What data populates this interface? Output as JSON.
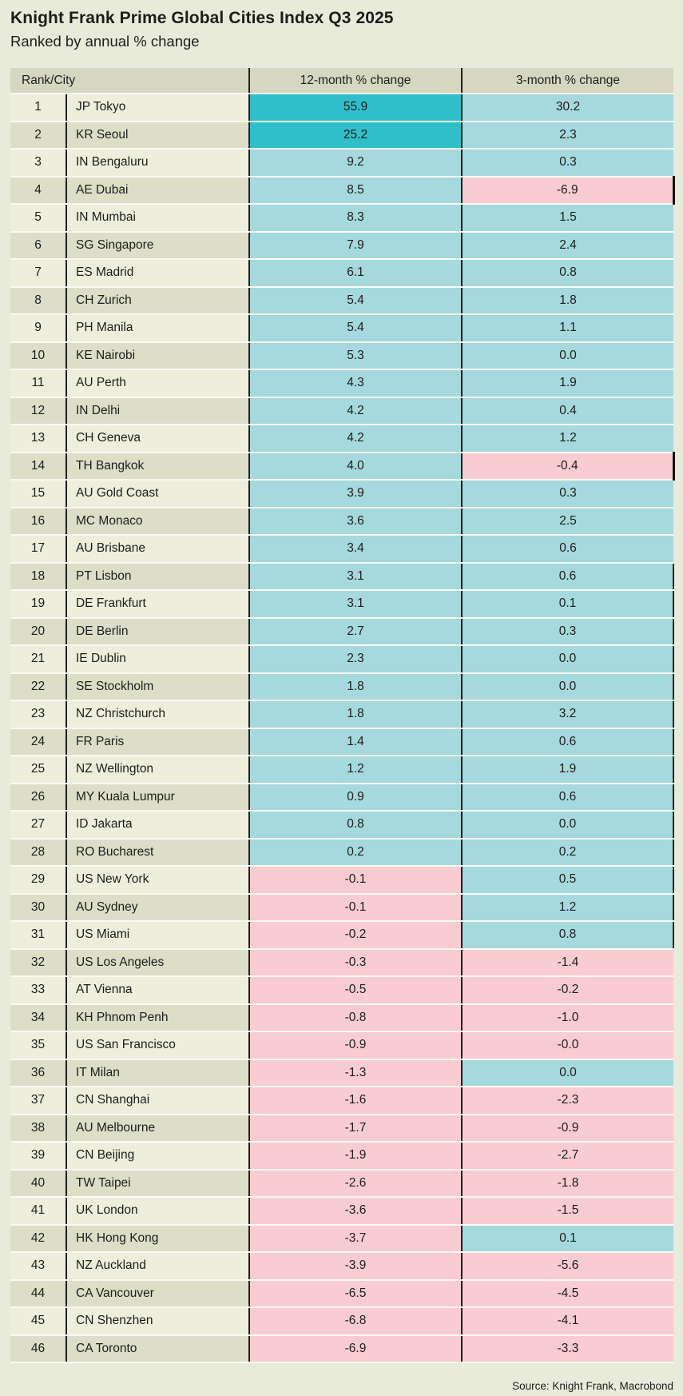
{
  "header": {
    "title": "Knight Frank Prime Global Cities Index Q3 2025",
    "subtitle": "Ranked by annual % change"
  },
  "table": {
    "columns": [
      "Rank/City",
      "12-month % change",
      "3-month % change"
    ]
  },
  "chart_data": {
    "type": "table",
    "title": "Knight Frank Prime Global Cities Index Q3 2025",
    "subtitle": "Ranked by annual % change",
    "columns": [
      "Rank",
      "City",
      "12-month % change",
      "3-month % change"
    ],
    "rows": [
      [
        "1",
        "JP Tokyo",
        "55.9",
        "30.2"
      ],
      [
        "2",
        "KR Seoul",
        "25.2",
        "2.3"
      ],
      [
        "3",
        "IN Bengaluru",
        "9.2",
        "0.3"
      ],
      [
        "4",
        "AE Dubai",
        "8.5",
        "-6.9"
      ],
      [
        "5",
        "IN Mumbai",
        "8.3",
        "1.5"
      ],
      [
        "6",
        "SG Singapore",
        "7.9",
        "2.4"
      ],
      [
        "7",
        "ES Madrid",
        "6.1",
        "0.8"
      ],
      [
        "8",
        "CH Zurich",
        "5.4",
        "1.8"
      ],
      [
        "9",
        "PH Manila",
        "5.4",
        "1.1"
      ],
      [
        "10",
        "KE Nairobi",
        "5.3",
        "0.0"
      ],
      [
        "11",
        "AU Perth",
        "4.3",
        "1.9"
      ],
      [
        "12",
        "IN Delhi",
        "4.2",
        "0.4"
      ],
      [
        "13",
        "CH Geneva",
        "4.2",
        "1.2"
      ],
      [
        "14",
        "TH Bangkok",
        "4.0",
        "-0.4"
      ],
      [
        "15",
        "AU Gold Coast",
        "3.9",
        "0.3"
      ],
      [
        "16",
        "MC Monaco",
        "3.6",
        "2.5"
      ],
      [
        "17",
        "AU Brisbane",
        "3.4",
        "0.6"
      ],
      [
        "18",
        "PT Lisbon",
        "3.1",
        "0.6"
      ],
      [
        "19",
        "DE Frankfurt",
        "3.1",
        "0.1"
      ],
      [
        "20",
        "DE Berlin",
        "2.7",
        "0.3"
      ],
      [
        "21",
        "IE Dublin",
        "2.3",
        "0.0"
      ],
      [
        "22",
        "SE Stockholm",
        "1.8",
        "0.0"
      ],
      [
        "23",
        "NZ Christchurch",
        "1.8",
        "3.2"
      ],
      [
        "24",
        "FR Paris",
        "1.4",
        "0.6"
      ],
      [
        "25",
        "NZ Wellington",
        "1.2",
        "1.9"
      ],
      [
        "26",
        "MY Kuala Lumpur",
        "0.9",
        "0.6"
      ],
      [
        "27",
        "ID Jakarta",
        "0.8",
        "0.0"
      ],
      [
        "28",
        "RO Bucharest",
        "0.2",
        "0.2"
      ],
      [
        "29",
        "US New York",
        "-0.1",
        "0.5"
      ],
      [
        "30",
        "AU Sydney",
        "-0.1",
        "1.2"
      ],
      [
        "31",
        "US Miami",
        "-0.2",
        "0.8"
      ],
      [
        "32",
        "US Los Angeles",
        "-0.3",
        "-1.4"
      ],
      [
        "33",
        "AT Vienna",
        "-0.5",
        "-0.2"
      ],
      [
        "34",
        "KH Phnom Penh",
        "-0.8",
        "-1.0"
      ],
      [
        "35",
        "US San Francisco",
        "-0.9",
        "-0.0"
      ],
      [
        "36",
        "IT Milan",
        "-1.3",
        "0.0"
      ],
      [
        "37",
        "CN Shanghai",
        "-1.6",
        "-2.3"
      ],
      [
        "38",
        "AU Melbourne",
        "-1.7",
        "-0.9"
      ],
      [
        "39",
        "CN Beijing",
        "-1.9",
        "-2.7"
      ],
      [
        "40",
        "TW Taipei",
        "-2.6",
        "-1.8"
      ],
      [
        "41",
        "UK London",
        "-3.6",
        "-1.5"
      ],
      [
        "42",
        "HK Hong Kong",
        "-3.7",
        "0.1"
      ],
      [
        "43",
        "NZ Auckland",
        "-3.9",
        "-5.6"
      ],
      [
        "44",
        "CA Vancouver",
        "-6.5",
        "-4.5"
      ],
      [
        "45",
        "CN Shenzhen",
        "-6.8",
        "-4.1"
      ],
      [
        "46",
        "CA Toronto",
        "-6.9",
        "-3.3"
      ]
    ],
    "legend_rules": "positive values teal, negative values pink, top-two 12-month values strong teal"
  },
  "marks": {
    "strong_teal_12m_ranks": [
      1,
      2
    ],
    "black_right_edge_3m_ranks": [
      4,
      14
    ],
    "thin_right_edge_3m_ranks": [
      18,
      19,
      20,
      21,
      22,
      23,
      24,
      25,
      26,
      27,
      28,
      29,
      30,
      31
    ]
  },
  "footer": {
    "source": "Source: Knight Frank, Macrobond"
  },
  "colors": {
    "page_bg": "#e9ebda",
    "header_bg": "#d5d7c1",
    "row_light": "#edeedc",
    "row_dark": "#dcdec7",
    "teal": "#a5d9dd",
    "teal_strong": "#2fbfca",
    "pink": "#f9ccd1",
    "divider": "#1f1f1d",
    "separator": "#fafaf2",
    "text": "#1d1d1b"
  }
}
